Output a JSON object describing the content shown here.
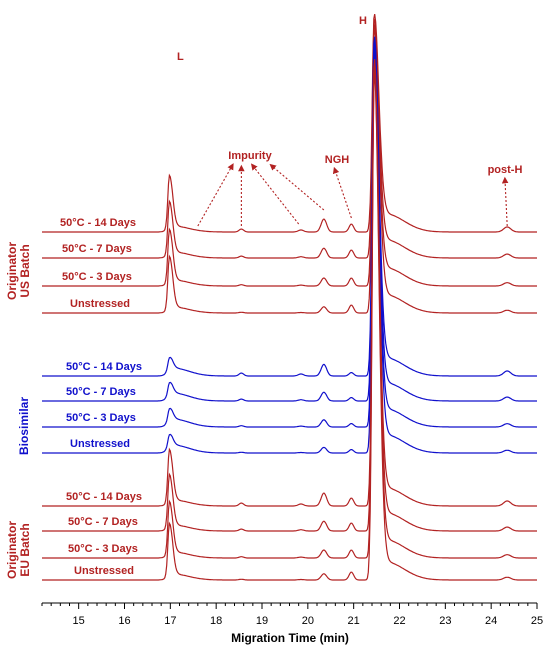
{
  "chart_data": {
    "type": "line",
    "xlabel": "Migration Time (min)",
    "xlim": [
      14.2,
      25
    ],
    "xticks": [
      "15",
      "16",
      "17",
      "18",
      "19",
      "20",
      "21",
      "22",
      "23",
      "24",
      "25"
    ],
    "peak_labels": [
      "L",
      "H"
    ],
    "annotations": [
      "Impurity",
      "NGH",
      "post-H"
    ],
    "colors": {
      "originator": "#b22222",
      "biosimilar": "#1010cc"
    },
    "groups": [
      {
        "name_lines": [
          "Originator",
          "US Batch"
        ],
        "color": "#b22222",
        "traces": [
          {
            "name": "50°C - 14 Days"
          },
          {
            "name": "50°C - 7 Days"
          },
          {
            "name": "50°C - 3 Days"
          },
          {
            "name": "Unstressed"
          }
        ]
      },
      {
        "name_lines": [
          "Biosimilar"
        ],
        "color": "#1010cc",
        "traces": [
          {
            "name": "50°C - 14 Days"
          },
          {
            "name": "50°C - 7 Days"
          },
          {
            "name": "50°C - 3 Days"
          },
          {
            "name": "Unstressed"
          }
        ]
      },
      {
        "name_lines": [
          "Originator",
          "EU Batch"
        ],
        "color": "#b22222",
        "traces": [
          {
            "name": "50°C - 14 Days"
          },
          {
            "name": "50°C - 7 Days"
          },
          {
            "name": "50°C - 3 Days"
          },
          {
            "name": "Unstressed"
          }
        ]
      }
    ]
  }
}
